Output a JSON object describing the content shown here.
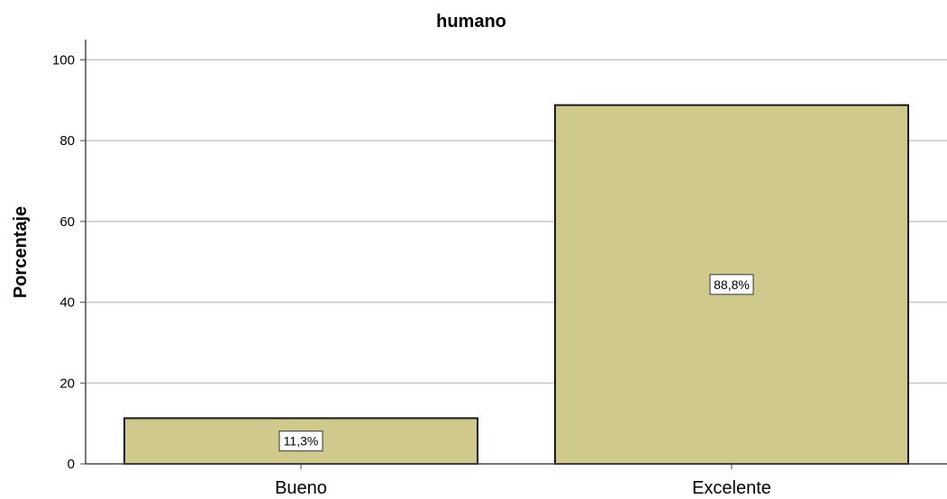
{
  "chart_data": {
    "type": "bar",
    "title": "humano",
    "xlabel": "",
    "ylabel": "Porcentaje",
    "categories": [
      "Bueno",
      "Excelente"
    ],
    "values": [
      11.3,
      88.8
    ],
    "data_labels": [
      "11,3%",
      "88,8%"
    ],
    "ylim": [
      0,
      105
    ],
    "yticks": [
      0,
      20,
      40,
      60,
      80,
      100
    ],
    "ytick_labels": [
      "0",
      "20",
      "40",
      "60",
      "80",
      "100"
    ],
    "grid": true,
    "legend": "none",
    "colors": {
      "bar_fill": "#cfc98c",
      "bar_stroke": "#1a1a1a",
      "grid": "#c8c8c8",
      "axis": "#4a4a4a"
    }
  }
}
